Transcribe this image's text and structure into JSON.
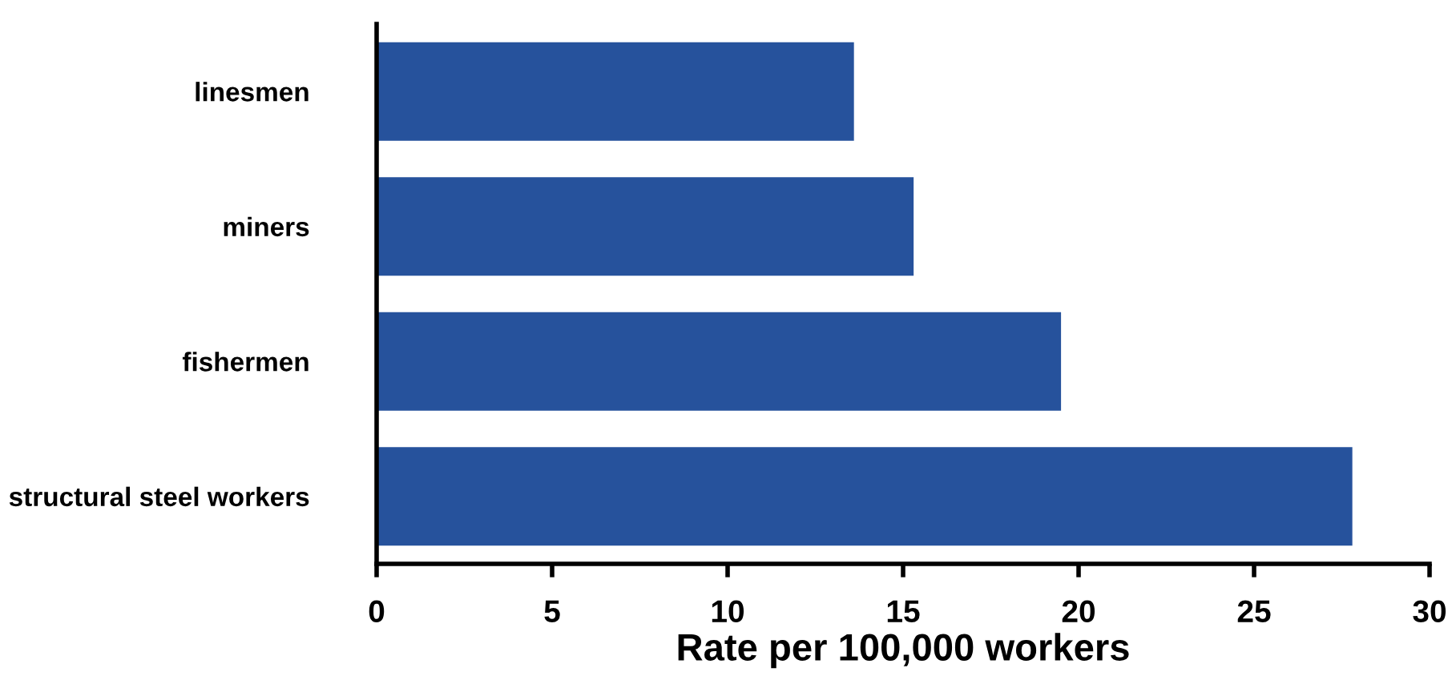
{
  "chart_data": {
    "type": "bar",
    "orientation": "horizontal",
    "xlabel": "Rate per 100,000 workers",
    "categories": [
      "linesmen",
      "miners",
      "fishermen",
      "structural steel workers"
    ],
    "values": [
      13.6,
      15.3,
      19.5,
      27.8
    ],
    "color": "#26529c",
    "xlim": [
      0,
      30
    ],
    "xticks": [
      0,
      5,
      10,
      15,
      20,
      25,
      30
    ],
    "grid": false,
    "legend": false
  }
}
